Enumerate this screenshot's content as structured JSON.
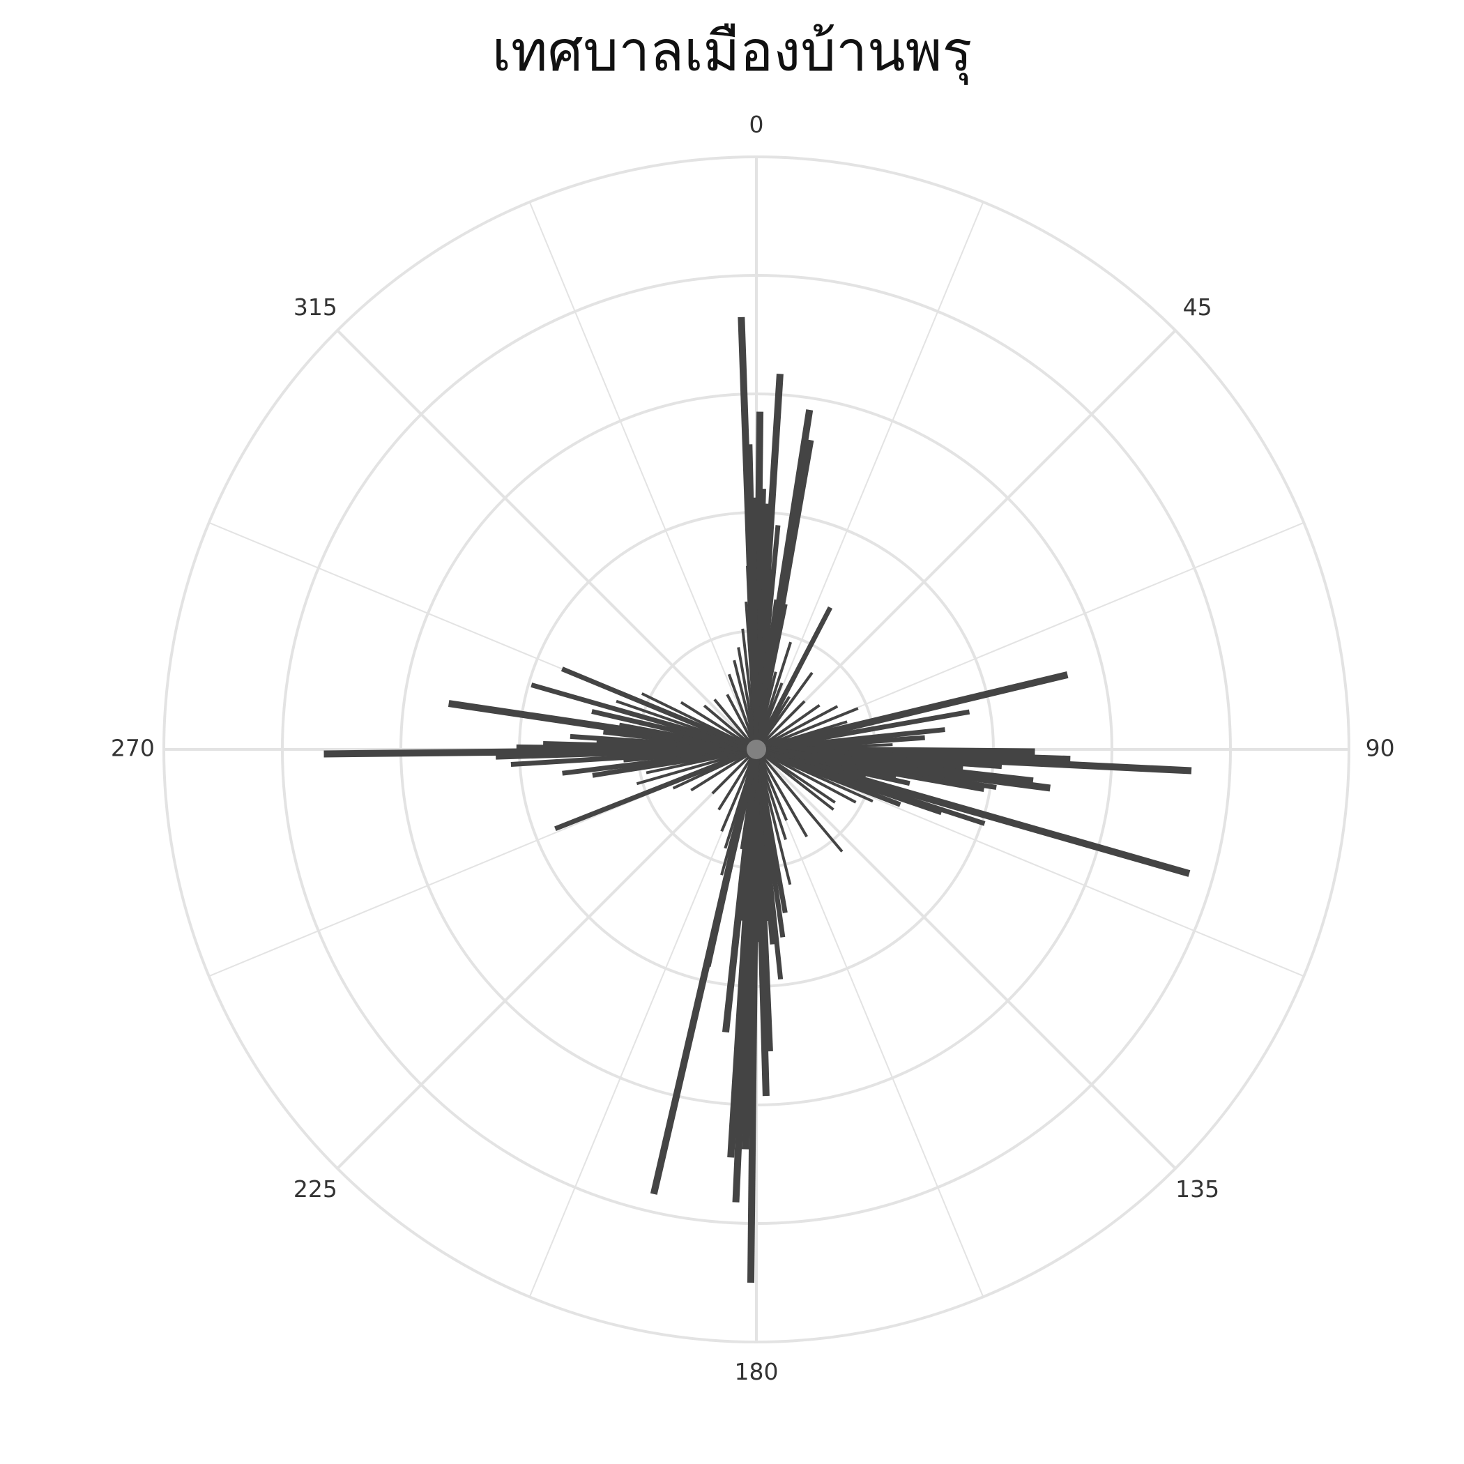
{
  "chart_data": {
    "type": "bar",
    "polar": true,
    "title": "เทศบาลเมืองบ้านพรุ",
    "angular_axis": {
      "direction": "clockwise",
      "zero_at": "top",
      "ticks": [
        "0",
        "45",
        "90",
        "135",
        "180",
        "225",
        "270",
        "315"
      ],
      "minor_spoke_step_deg": 22.5
    },
    "radial_axis": {
      "range": [
        0,
        20
      ],
      "rings": [
        4,
        8,
        12,
        16,
        20
      ],
      "tick_labels_shown": false
    },
    "grid": true,
    "legend": "none",
    "colors": {
      "bar": "#444444",
      "grid": "#e3e3e3",
      "center_fade": "#888888"
    },
    "series": [
      {
        "bars": [
          {
            "theta": -2.0,
            "r": 14.6
          },
          {
            "theta": 3.6,
            "r": 12.7
          },
          {
            "theta": 8.9,
            "r": 11.6
          },
          {
            "theta": 9.9,
            "r": 10.6
          },
          {
            "theta": 0.6,
            "r": 11.4
          },
          {
            "theta": -1.4,
            "r": 10.3
          },
          {
            "theta": 1.6,
            "r": 8.8
          },
          {
            "theta": 2.7,
            "r": 8.3
          },
          {
            "theta": 5.5,
            "r": 7.6
          },
          {
            "theta": 3.4,
            "r": 7.3
          },
          {
            "theta": -0.6,
            "r": 7.1
          },
          {
            "theta": 4.4,
            "r": 6.1
          },
          {
            "theta": 1.9,
            "r": 5.4
          },
          {
            "theta": 7.7,
            "r": 5.1
          },
          {
            "theta": -1.2,
            "r": 4.6
          },
          {
            "theta": 3.9,
            "r": 4.2
          },
          {
            "theta": 6.3,
            "r": 3.3
          },
          {
            "theta": -2.9,
            "r": 3.8
          },
          {
            "theta": 2.5,
            "r": 3.5
          },
          {
            "theta": 11.6,
            "r": 5.0
          },
          {
            "theta": 17.7,
            "r": 3.8
          },
          {
            "theta": 27.5,
            "r": 5.4
          },
          {
            "theta": 36.0,
            "r": 3.2
          },
          {
            "theta": 14.0,
            "r": 2.7
          },
          {
            "theta": 21.0,
            "r": 2.4
          },
          {
            "theta": 32.0,
            "r": 2.1
          },
          {
            "theta": 45.0,
            "r": 2.3
          },
          {
            "theta": 55.0,
            "r": 2.6
          },
          {
            "theta": 62.0,
            "r": 3.1
          },
          {
            "theta": 68.0,
            "r": 3.7
          },
          {
            "theta": 73.0,
            "r": 3.2
          },
          {
            "theta": 76.5,
            "r": 10.8
          },
          {
            "theta": 80.0,
            "r": 7.3
          },
          {
            "theta": 84.0,
            "r": 6.4
          },
          {
            "theta": 86.0,
            "r": 5.7
          },
          {
            "theta": 88.0,
            "r": 4.6
          },
          {
            "theta": 89.0,
            "r": 3.6
          },
          {
            "theta": 90.5,
            "r": 9.4
          },
          {
            "theta": 91.8,
            "r": 10.6
          },
          {
            "theta": 92.8,
            "r": 14.7
          },
          {
            "theta": 94.0,
            "r": 8.3
          },
          {
            "theta": 95.0,
            "r": 7.0
          },
          {
            "theta": 96.5,
            "r": 9.4
          },
          {
            "theta": 98.0,
            "r": 7.2
          },
          {
            "theta": 99.5,
            "r": 5.6
          },
          {
            "theta": 101.0,
            "r": 4.8
          },
          {
            "theta": 99.0,
            "r": 8.2
          },
          {
            "theta": 97.5,
            "r": 10.0
          },
          {
            "theta": 100.0,
            "r": 7.8
          },
          {
            "theta": 102.5,
            "r": 5.3
          },
          {
            "theta": 104.0,
            "r": 3.8
          },
          {
            "theta": 106.0,
            "r": 15.2
          },
          {
            "theta": 108.0,
            "r": 8.1
          },
          {
            "theta": 111.0,
            "r": 5.2
          },
          {
            "theta": 114.0,
            "r": 4.3
          },
          {
            "theta": 108.9,
            "r": 6.6
          },
          {
            "theta": 118.0,
            "r": 3.8
          },
          {
            "theta": 124.0,
            "r": 3.2
          },
          {
            "theta": 128.0,
            "r": 3.3
          },
          {
            "theta": 140.0,
            "r": 4.5
          },
          {
            "theta": 150.0,
            "r": 3.4
          },
          {
            "theta": 157.0,
            "r": 2.6
          },
          {
            "theta": 162.0,
            "r": 3.2
          },
          {
            "theta": 166.0,
            "r": 4.7
          },
          {
            "theta": 170.0,
            "r": 5.6
          },
          {
            "theta": 172.0,
            "r": 6.4
          },
          {
            "theta": 174.0,
            "r": 7.8
          },
          {
            "theta": 175.3,
            "r": 6.6
          },
          {
            "theta": 176.5,
            "r": 5.8
          },
          {
            "theta": 177.5,
            "r": 10.2
          },
          {
            "theta": 178.4,
            "r": 11.7
          },
          {
            "theta": 179.5,
            "r": 6.5
          },
          {
            "theta": 180.6,
            "r": 18.0
          },
          {
            "theta": 181.6,
            "r": 13.5
          },
          {
            "theta": 182.6,
            "r": 15.3
          },
          {
            "theta": 183.6,
            "r": 13.8
          },
          {
            "theta": 184.6,
            "r": 5.8
          },
          {
            "theta": 186.2,
            "r": 9.6
          },
          {
            "theta": 188.5,
            "r": 3.4
          },
          {
            "theta": 192.5,
            "r": 7.5
          },
          {
            "theta": 195.5,
            "r": 4.4
          },
          {
            "theta": 193.0,
            "r": 15.4
          },
          {
            "theta": 197.5,
            "r": 3.5
          },
          {
            "theta": 203.0,
            "r": 3.0
          },
          {
            "theta": 212.0,
            "r": 2.4
          },
          {
            "theta": 225.0,
            "r": 2.1
          },
          {
            "theta": 238.0,
            "r": 2.6
          },
          {
            "theta": 245.0,
            "r": 3.1
          },
          {
            "theta": 248.5,
            "r": 7.3
          },
          {
            "theta": 254.0,
            "r": 4.2
          },
          {
            "theta": 258.0,
            "r": 3.8
          },
          {
            "theta": 261.0,
            "r": 5.6
          },
          {
            "theta": 263.0,
            "r": 6.6
          },
          {
            "theta": 265.0,
            "r": 4.5
          },
          {
            "theta": 266.5,
            "r": 8.3
          },
          {
            "theta": 268.3,
            "r": 8.8
          },
          {
            "theta": 269.4,
            "r": 14.6
          },
          {
            "theta": 270.6,
            "r": 8.1
          },
          {
            "theta": 271.6,
            "r": 7.2
          },
          {
            "theta": 272.6,
            "r": 5.4
          },
          {
            "theta": 274.0,
            "r": 6.3
          },
          {
            "theta": 276.5,
            "r": 5.2
          },
          {
            "theta": 278.5,
            "r": 10.5
          },
          {
            "theta": 280.5,
            "r": 4.7
          },
          {
            "theta": 283.0,
            "r": 5.7
          },
          {
            "theta": 286.0,
            "r": 7.9
          },
          {
            "theta": 289.0,
            "r": 5.0
          },
          {
            "theta": 292.5,
            "r": 7.1
          },
          {
            "theta": 296.0,
            "r": 4.3
          },
          {
            "theta": 302.0,
            "r": 3.0
          },
          {
            "theta": 310.0,
            "r": 2.3
          },
          {
            "theta": 320.0,
            "r": 2.2
          },
          {
            "theta": 332.0,
            "r": 2.1
          },
          {
            "theta": 340.0,
            "r": 2.7
          },
          {
            "theta": 346.0,
            "r": 3.1
          },
          {
            "theta": 350.0,
            "r": 3.5
          },
          {
            "theta": 353.5,
            "r": 4.1
          },
          {
            "theta": 356.0,
            "r": 5.0
          },
          {
            "theta": 357.5,
            "r": 6.2
          },
          {
            "theta": 358.6,
            "r": 7.6
          },
          {
            "theta": 359.3,
            "r": 8.5
          }
        ]
      }
    ]
  }
}
